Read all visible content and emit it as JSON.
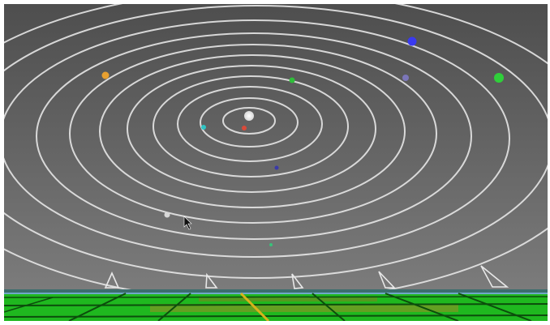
{
  "app": {
    "view": "orrery-3d-scene"
  },
  "colors": {
    "sky_top": "#505050",
    "sky_mid": "#686868",
    "sky_bottom": "#7a7a7a",
    "orbit": "#e6e6e6",
    "sun": "#ffffff",
    "ground_green": "#1fb81f",
    "ground_dark": "#0c4d0c",
    "ground_stripe": "#c9a51a",
    "ground_edge": "#6fa8c8"
  },
  "scene": {
    "sun": {
      "name": "sun",
      "color": "#ffffff"
    },
    "orbits": [
      {
        "name": "orbit-1"
      },
      {
        "name": "orbit-2"
      },
      {
        "name": "orbit-3"
      },
      {
        "name": "orbit-4"
      },
      {
        "name": "orbit-5"
      },
      {
        "name": "orbit-6"
      },
      {
        "name": "orbit-7"
      },
      {
        "name": "orbit-8"
      },
      {
        "name": "orbit-9"
      },
      {
        "name": "orbit-10"
      },
      {
        "name": "orbit-11"
      }
    ],
    "planets": [
      {
        "name": "planet-red",
        "color": "#d94a3a"
      },
      {
        "name": "planet-cyan",
        "color": "#2fc4c4"
      },
      {
        "name": "planet-green-inner",
        "color": "#2fbf3a"
      },
      {
        "name": "planet-navy",
        "color": "#3a3aa8"
      },
      {
        "name": "planet-orange",
        "color": "#e8a030"
      },
      {
        "name": "planet-lavender",
        "color": "#7b76b8"
      },
      {
        "name": "planet-blue",
        "color": "#3a3af0"
      },
      {
        "name": "planet-green-outer",
        "color": "#2fcf3a"
      },
      {
        "name": "planet-white",
        "color": "#d8d8d8"
      },
      {
        "name": "planet-teal-small",
        "color": "#39c27a"
      }
    ],
    "markers": [
      {
        "name": "marker-1"
      },
      {
        "name": "marker-2"
      },
      {
        "name": "marker-3"
      },
      {
        "name": "marker-4"
      },
      {
        "name": "marker-5"
      }
    ]
  }
}
